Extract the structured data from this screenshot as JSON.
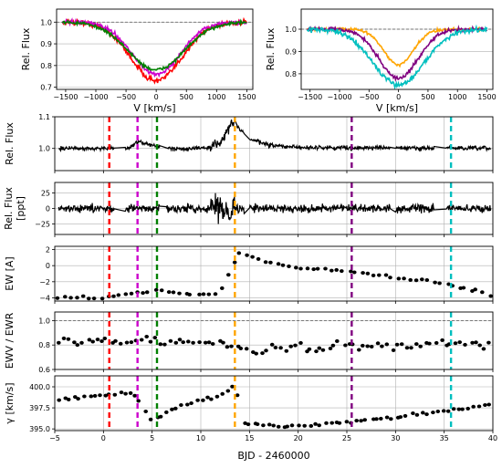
{
  "figure": {
    "xlabel": "BJD - 2460000"
  },
  "chart_data": [
    {
      "type": "line",
      "id": "profile-left",
      "xlabel": "V [km/s]",
      "ylabel": "Rel. Flux",
      "xlim": [
        -1650,
        1600
      ],
      "ylim": [
        0.69,
        1.06
      ],
      "xticks": [
        -1500,
        -1000,
        -500,
        0,
        500,
        1000,
        1500
      ],
      "xtick_labels": [
        "−1500",
        "−1000",
        "−500",
        "0",
        "500",
        "1000",
        "1500"
      ],
      "yticks": [
        0.7,
        0.8,
        0.9,
        1.0
      ],
      "ytick_labels": [
        "0.7",
        "0.8",
        "0.9",
        "1.0"
      ],
      "reference_line": 1.0,
      "series": [
        {
          "color": "#ff0000",
          "depth": 0.27,
          "width": 420,
          "noise": 0.012
        },
        {
          "color": "#cc00cc",
          "depth": 0.24,
          "width": 400,
          "noise": 0.008
        },
        {
          "color": "#008000",
          "depth": 0.22,
          "width": 460,
          "noise": 0.007
        }
      ]
    },
    {
      "type": "line",
      "id": "profile-right",
      "xlabel": "V [km/s]",
      "ylabel": "Rel. Flux",
      "xlim": [
        -1650,
        1600
      ],
      "ylim": [
        0.73,
        1.09
      ],
      "xticks": [
        -1500,
        -1000,
        -500,
        0,
        500,
        1000,
        1500
      ],
      "xtick_labels": [
        "−1500",
        "−1000",
        "−500",
        "0",
        "500",
        "1000",
        "1500"
      ],
      "yticks": [
        0.8,
        0.9,
        1.0
      ],
      "ytick_labels": [
        "0.8",
        "0.9",
        "1.0"
      ],
      "reference_line": 1.0,
      "series": [
        {
          "color": "#ffa500",
          "depth": 0.16,
          "width": 250,
          "noise": 0.006
        },
        {
          "color": "#800080",
          "depth": 0.22,
          "width": 330,
          "noise": 0.008
        },
        {
          "color": "#00bfbf",
          "depth": 0.25,
          "width": 430,
          "noise": 0.01
        }
      ]
    },
    {
      "type": "line",
      "id": "light-curve",
      "ylabel": "Rel. Flux",
      "xlim": [
        -5,
        40
      ],
      "ylim": [
        0.93,
        1.1
      ],
      "yticks": [
        1.0,
        1.1
      ],
      "ytick_labels": [
        "1.0",
        "1.1"
      ],
      "keypoints": [
        [
          -5,
          1.0
        ],
        [
          2.5,
          1.0
        ],
        [
          3.5,
          1.02
        ],
        [
          5,
          1.012
        ],
        [
          6,
          1.0
        ],
        [
          10,
          1.0
        ],
        [
          11,
          1.005
        ],
        [
          12,
          1.02
        ],
        [
          13,
          1.07
        ],
        [
          13.5,
          1.085
        ],
        [
          14,
          1.06
        ],
        [
          15,
          1.03
        ],
        [
          17,
          1.01
        ],
        [
          20,
          1.003
        ],
        [
          40,
          1.0
        ]
      ],
      "noise": 0.006
    },
    {
      "type": "line",
      "id": "residuals",
      "ylabel": "Rel. Flux [ppt]",
      "xlim": [
        -5,
        40
      ],
      "ylim": [
        -42,
        42
      ],
      "yticks": [
        -25,
        0,
        25
      ],
      "ytick_labels": [
        "−25",
        "0",
        "25"
      ],
      "noise": 6
    },
    {
      "type": "scatter",
      "id": "equivalent-width",
      "ylabel": "EW [A]",
      "xlim": [
        -5,
        40
      ],
      "ylim": [
        -4.4,
        2.4
      ],
      "yticks": [
        -4,
        -2,
        0,
        2
      ],
      "ytick_labels": [
        "−4",
        "−2",
        "0",
        "2"
      ],
      "keypoints": [
        [
          -4.5,
          -4.0
        ],
        [
          0.5,
          -3.9
        ],
        [
          3,
          -3.5
        ],
        [
          5,
          -3.0
        ],
        [
          7,
          -3.3
        ],
        [
          10,
          -3.7
        ],
        [
          12,
          -3.4
        ],
        [
          13,
          -0.6
        ],
        [
          14,
          1.6
        ],
        [
          16,
          0.8
        ],
        [
          18,
          0.2
        ],
        [
          20,
          -0.3
        ],
        [
          25,
          -0.7
        ],
        [
          30,
          -1.4
        ],
        [
          35,
          -2.2
        ],
        [
          40,
          -3.6
        ]
      ],
      "count": 72
    },
    {
      "type": "scatter",
      "id": "ewv-ewr",
      "ylabel": "EWV / EWR",
      "xlim": [
        -5,
        40
      ],
      "ylim": [
        0.6,
        1.07
      ],
      "yticks": [
        0.6,
        0.8,
        1.0
      ],
      "ytick_labels": [
        "0.6",
        "0.8",
        "1.0"
      ],
      "reference_line": 1.0,
      "keypoints": [
        [
          -5,
          0.83
        ],
        [
          5,
          0.83
        ],
        [
          10,
          0.82
        ],
        [
          13,
          0.8
        ],
        [
          15,
          0.75
        ],
        [
          20,
          0.78
        ],
        [
          30,
          0.8
        ],
        [
          40,
          0.8
        ]
      ],
      "count": 90
    },
    {
      "type": "scatter",
      "id": "gamma-velocity",
      "ylabel": "γ [km/s]",
      "xlim": [
        -5,
        40
      ],
      "ylim": [
        394.8,
        401.3
      ],
      "yticks": [
        395.0,
        397.5,
        400.0
      ],
      "ytick_labels": [
        "395.0",
        "397.5",
        "400.0"
      ],
      "xticks": [
        -5,
        0,
        5,
        10,
        15,
        20,
        25,
        30,
        35,
        40
      ],
      "xtick_labels": [
        "−5",
        "0",
        "5",
        "10",
        "15",
        "20",
        "25",
        "30",
        "35",
        "40"
      ],
      "keypoints": [
        [
          -4.5,
          398.5
        ],
        [
          0,
          399.0
        ],
        [
          3,
          399.2
        ],
        [
          5,
          396.0
        ],
        [
          8,
          397.8
        ],
        [
          11,
          398.7
        ],
        [
          13,
          399.5
        ],
        [
          13.6,
          400.8
        ],
        [
          14,
          395.6
        ],
        [
          20,
          395.3
        ],
        [
          25,
          395.8
        ],
        [
          30,
          396.4
        ],
        [
          35,
          397.1
        ],
        [
          40,
          398.0
        ]
      ],
      "count": 85
    }
  ],
  "epochs": [
    {
      "x": 0.6,
      "color": "#ff0000"
    },
    {
      "x": 3.5,
      "color": "#cc00cc"
    },
    {
      "x": 5.5,
      "color": "#008000"
    },
    {
      "x": 13.5,
      "color": "#ffa500"
    },
    {
      "x": 25.5,
      "color": "#800080"
    },
    {
      "x": 35.7,
      "color": "#00bfbf"
    }
  ]
}
